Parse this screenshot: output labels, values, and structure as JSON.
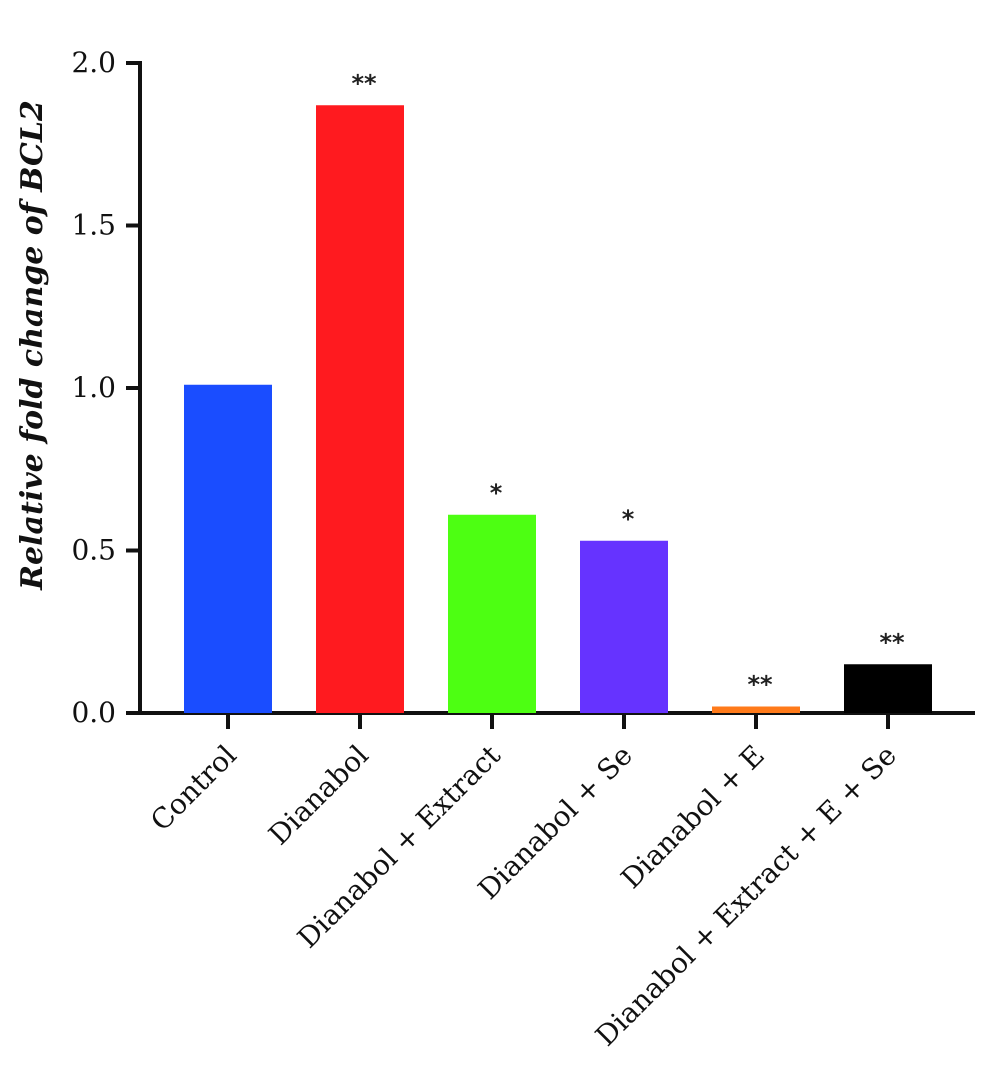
{
  "chart_data": {
    "type": "bar",
    "title": "",
    "xlabel": "",
    "ylabel": "Relative fold change of BCL2",
    "ylim": [
      0,
      2.0
    ],
    "yticks": [
      "0.0",
      "0.5",
      "1.0",
      "1.5",
      "2.0"
    ],
    "ytick_values": [
      0,
      0.5,
      1.0,
      1.5,
      2.0
    ],
    "categories": [
      "Control",
      "Dianabol",
      "Dianabol + Extract",
      "Dianabol + Se",
      "Dianabol + E",
      "Dianabol + Extract + E + Se"
    ],
    "values": [
      1.01,
      1.87,
      0.61,
      0.53,
      0.02,
      0.15
    ],
    "significance": [
      "",
      "**",
      "*",
      "*",
      "**",
      "**"
    ],
    "colors": [
      "#1a4dff",
      "#ff1a1f",
      "#4dff12",
      "#6633ff",
      "#ff7a1a",
      "#000000"
    ],
    "grid": false,
    "legend": "none"
  }
}
